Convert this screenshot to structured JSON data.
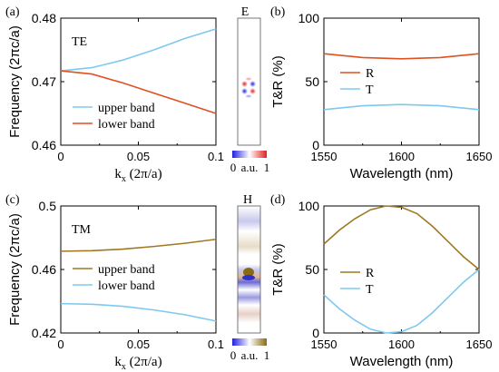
{
  "panels": {
    "a": {
      "label": "(a)"
    },
    "b": {
      "label": "(b)"
    },
    "c": {
      "label": "(c)"
    },
    "d": {
      "label": "(d)"
    }
  },
  "field_maps": {
    "top": {
      "title": "E",
      "scale_min": "0",
      "scale_unit": "a.u.",
      "scale_max": "1",
      "colors": [
        "#2020e0",
        "#ffffff",
        "#e02020"
      ]
    },
    "bottom": {
      "title": "H",
      "scale_min": "0",
      "scale_unit": "a.u.",
      "scale_max": "1",
      "colors": [
        "#2020e0",
        "#ffffff",
        "#8b6914"
      ]
    }
  },
  "colors": {
    "light_blue": "#7ec8f0",
    "red_orange": "#e05020",
    "brown": "#a07820"
  },
  "chart_data": [
    {
      "id": "a",
      "type": "line",
      "inset_text": "TE",
      "xlabel_main": "k",
      "xlabel_sub": "x",
      "xlabel_rest": " (2π/a)",
      "ylabel": "Frequency (2πc/a)",
      "xlim": [
        0,
        0.1
      ],
      "ylim": [
        0.46,
        0.48
      ],
      "xticks": [
        0,
        0.05,
        0.1
      ],
      "xtick_labels": [
        "0",
        "0.05",
        "0.1"
      ],
      "yticks": [
        0.46,
        0.47,
        0.48
      ],
      "ytick_labels": [
        "0.46",
        "0.47",
        "0.48"
      ],
      "legend_position": "lower-left",
      "series": [
        {
          "name": "upper band",
          "color": "#7ec8f0",
          "x": [
            0,
            0.02,
            0.04,
            0.06,
            0.08,
            0.1
          ],
          "y": [
            0.4717,
            0.4722,
            0.4734,
            0.475,
            0.4768,
            0.4783
          ]
        },
        {
          "name": "lower band",
          "color": "#e05020",
          "x": [
            0,
            0.02,
            0.04,
            0.06,
            0.08,
            0.1
          ],
          "y": [
            0.4717,
            0.4712,
            0.4698,
            0.4682,
            0.4666,
            0.465
          ]
        }
      ]
    },
    {
      "id": "b",
      "type": "line",
      "xlabel": "Wavelength (nm)",
      "ylabel": "T&R (%)",
      "xlim": [
        1550,
        1650
      ],
      "ylim": [
        0,
        100
      ],
      "xticks": [
        1550,
        1600,
        1650
      ],
      "xtick_labels": [
        "1550",
        "1600",
        "1650"
      ],
      "yticks": [
        0,
        50,
        100
      ],
      "ytick_labels": [
        "0",
        "50",
        "100"
      ],
      "legend_position": "center-left",
      "series": [
        {
          "name": "R",
          "color": "#e05020",
          "x": [
            1550,
            1575,
            1600,
            1625,
            1650
          ],
          "y": [
            72,
            69,
            68,
            69,
            72
          ]
        },
        {
          "name": "T",
          "color": "#7ec8f0",
          "x": [
            1550,
            1575,
            1600,
            1625,
            1650
          ],
          "y": [
            28,
            31,
            32,
            31,
            28
          ]
        }
      ]
    },
    {
      "id": "c",
      "type": "line",
      "inset_text": "TM",
      "xlabel_main": "k",
      "xlabel_sub": "x",
      "xlabel_rest": " (2π/a)",
      "ylabel": "Frequency (2πc/a)",
      "xlim": [
        0,
        0.1
      ],
      "ylim": [
        0.42,
        0.5
      ],
      "xticks": [
        0,
        0.05,
        0.1
      ],
      "xtick_labels": [
        "0",
        "0.05",
        "0.1"
      ],
      "yticks": [
        0.42,
        0.46,
        0.5
      ],
      "ytick_labels": [
        "0.42",
        "0.46",
        "0.5"
      ],
      "legend_position": "center",
      "series": [
        {
          "name": "upper band",
          "color": "#a07820",
          "x": [
            0,
            0.02,
            0.04,
            0.06,
            0.08,
            0.1
          ],
          "y": [
            0.4715,
            0.4718,
            0.4728,
            0.4745,
            0.4765,
            0.479
          ]
        },
        {
          "name": "lower band",
          "color": "#7ec8f0",
          "x": [
            0,
            0.02,
            0.04,
            0.06,
            0.08,
            0.1
          ],
          "y": [
            0.4385,
            0.4381,
            0.4368,
            0.4345,
            0.4315,
            0.4275
          ]
        }
      ]
    },
    {
      "id": "d",
      "type": "line",
      "xlabel": "Wavelength (nm)",
      "ylabel": "T&R (%)",
      "xlim": [
        1550,
        1650
      ],
      "ylim": [
        0,
        100
      ],
      "xticks": [
        1550,
        1600,
        1650
      ],
      "xtick_labels": [
        "1550",
        "1600",
        "1650"
      ],
      "yticks": [
        0,
        50,
        100
      ],
      "ytick_labels": [
        "0",
        "50",
        "100"
      ],
      "legend_position": "center-left",
      "series": [
        {
          "name": "R",
          "color": "#a07820",
          "x": [
            1550,
            1560,
            1570,
            1580,
            1590,
            1600,
            1610,
            1620,
            1630,
            1640,
            1650
          ],
          "y": [
            70,
            81,
            90,
            97,
            100,
            99,
            94,
            84,
            72,
            60,
            50
          ]
        },
        {
          "name": "T",
          "color": "#7ec8f0",
          "x": [
            1550,
            1560,
            1570,
            1580,
            1590,
            1600,
            1610,
            1620,
            1630,
            1640,
            1650
          ],
          "y": [
            30,
            19,
            10,
            3,
            0,
            1,
            6,
            16,
            28,
            40,
            50
          ]
        }
      ]
    }
  ]
}
